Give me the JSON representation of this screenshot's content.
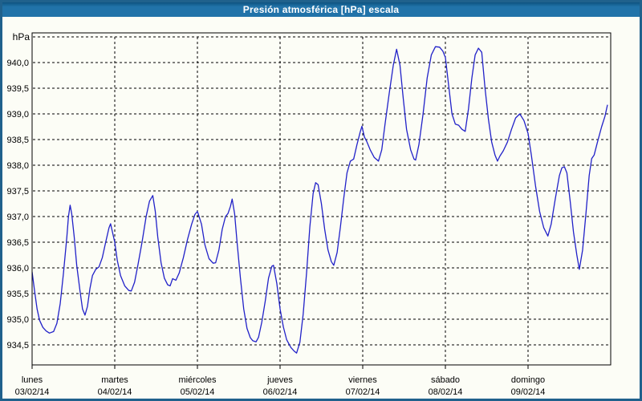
{
  "window": {
    "title": "Presión atmosférica [hPa] escala"
  },
  "colors": {
    "titlebar_top": "#0e5380",
    "titlebar_main": "#2173a9",
    "window_border": "#20618c",
    "background": "#fcfdf6",
    "grid": "#000000",
    "line": "#2121c8",
    "title_text": "#ffffff",
    "axis_text": "#000000"
  },
  "chart_data": {
    "type": "line",
    "title": "Presión atmosférica [hPa] escala",
    "y_unit_label": "hPa",
    "ylabel": "hPa",
    "xlabel": "",
    "grid": true,
    "legend": false,
    "ylim": [
      934.1,
      940.5
    ],
    "y_grid_step": 0.5,
    "y_tick_values": [
      940.0,
      939.5,
      939.0,
      938.5,
      938.0,
      937.5,
      937.0,
      936.5,
      936.0,
      935.5,
      935.0,
      934.5
    ],
    "y_tick_labels": [
      "940,0",
      "939,5",
      "939,0",
      "938,5",
      "938,0",
      "937,5",
      "937,0",
      "936,5",
      "936,0",
      "935,5",
      "935,0",
      "934,5"
    ],
    "x_days": [
      {
        "name": "lunes",
        "date": "03/02/14"
      },
      {
        "name": "martes",
        "date": "04/02/14"
      },
      {
        "name": "miércoles",
        "date": "05/02/14"
      },
      {
        "name": "jueves",
        "date": "06/02/14"
      },
      {
        "name": "viernes",
        "date": "07/02/14"
      },
      {
        "name": "sábado",
        "date": "08/02/14"
      },
      {
        "name": "domingo",
        "date": "09/02/14"
      }
    ],
    "series": [
      {
        "name": "Presión atmosférica",
        "color": "#2121c8",
        "x_unit": "days_from_2014-02-03",
        "points": [
          [
            0.0,
            935.92
          ],
          [
            0.03,
            935.55
          ],
          [
            0.06,
            935.2
          ],
          [
            0.09,
            934.98
          ],
          [
            0.13,
            934.84
          ],
          [
            0.17,
            934.77
          ],
          [
            0.21,
            934.73
          ],
          [
            0.26,
            934.76
          ],
          [
            0.3,
            934.92
          ],
          [
            0.34,
            935.3
          ],
          [
            0.38,
            935.9
          ],
          [
            0.42,
            936.6
          ],
          [
            0.44,
            937.0
          ],
          [
            0.46,
            937.22
          ],
          [
            0.48,
            937.05
          ],
          [
            0.51,
            936.6
          ],
          [
            0.54,
            936.05
          ],
          [
            0.58,
            935.55
          ],
          [
            0.61,
            935.2
          ],
          [
            0.64,
            935.08
          ],
          [
            0.67,
            935.25
          ],
          [
            0.7,
            935.6
          ],
          [
            0.73,
            935.85
          ],
          [
            0.77,
            935.97
          ],
          [
            0.81,
            936.02
          ],
          [
            0.85,
            936.2
          ],
          [
            0.89,
            936.5
          ],
          [
            0.93,
            936.78
          ],
          [
            0.95,
            936.86
          ],
          [
            1.0,
            936.5
          ],
          [
            1.03,
            936.15
          ],
          [
            1.07,
            935.85
          ],
          [
            1.12,
            935.65
          ],
          [
            1.17,
            935.56
          ],
          [
            1.2,
            935.55
          ],
          [
            1.24,
            935.72
          ],
          [
            1.28,
            936.05
          ],
          [
            1.33,
            936.5
          ],
          [
            1.38,
            937.0
          ],
          [
            1.42,
            937.3
          ],
          [
            1.46,
            937.41
          ],
          [
            1.49,
            937.1
          ],
          [
            1.52,
            936.6
          ],
          [
            1.56,
            936.1
          ],
          [
            1.6,
            935.8
          ],
          [
            1.64,
            935.67
          ],
          [
            1.67,
            935.65
          ],
          [
            1.7,
            935.79
          ],
          [
            1.74,
            935.76
          ],
          [
            1.78,
            935.9
          ],
          [
            1.83,
            936.2
          ],
          [
            1.88,
            936.55
          ],
          [
            1.93,
            936.85
          ],
          [
            1.97,
            937.04
          ],
          [
            2.0,
            937.1
          ],
          [
            2.05,
            936.85
          ],
          [
            2.09,
            936.45
          ],
          [
            2.14,
            936.18
          ],
          [
            2.19,
            936.09
          ],
          [
            2.22,
            936.1
          ],
          [
            2.26,
            936.35
          ],
          [
            2.3,
            936.75
          ],
          [
            2.34,
            937.0
          ],
          [
            2.37,
            937.06
          ],
          [
            2.4,
            937.2
          ],
          [
            2.42,
            937.34
          ],
          [
            2.45,
            937.05
          ],
          [
            2.48,
            936.5
          ],
          [
            2.52,
            935.8
          ],
          [
            2.56,
            935.2
          ],
          [
            2.6,
            934.82
          ],
          [
            2.64,
            934.64
          ],
          [
            2.67,
            934.58
          ],
          [
            2.71,
            934.56
          ],
          [
            2.74,
            934.65
          ],
          [
            2.78,
            934.95
          ],
          [
            2.82,
            935.35
          ],
          [
            2.86,
            935.8
          ],
          [
            2.9,
            936.03
          ],
          [
            2.92,
            936.05
          ],
          [
            2.96,
            935.7
          ],
          [
            3.0,
            935.2
          ],
          [
            3.04,
            934.85
          ],
          [
            3.08,
            934.6
          ],
          [
            3.13,
            934.45
          ],
          [
            3.17,
            934.38
          ],
          [
            3.2,
            934.34
          ],
          [
            3.24,
            934.55
          ],
          [
            3.28,
            935.1
          ],
          [
            3.32,
            935.9
          ],
          [
            3.36,
            936.8
          ],
          [
            3.4,
            937.45
          ],
          [
            3.43,
            937.66
          ],
          [
            3.46,
            937.62
          ],
          [
            3.5,
            937.25
          ],
          [
            3.54,
            936.75
          ],
          [
            3.58,
            936.35
          ],
          [
            3.62,
            936.12
          ],
          [
            3.65,
            936.05
          ],
          [
            3.69,
            936.3
          ],
          [
            3.73,
            936.8
          ],
          [
            3.77,
            937.35
          ],
          [
            3.81,
            937.85
          ],
          [
            3.85,
            938.08
          ],
          [
            3.89,
            938.12
          ],
          [
            3.93,
            938.4
          ],
          [
            3.97,
            938.65
          ],
          [
            3.99,
            938.76
          ],
          [
            4.02,
            938.55
          ],
          [
            4.05,
            938.46
          ],
          [
            4.09,
            938.3
          ],
          [
            4.14,
            938.15
          ],
          [
            4.19,
            938.08
          ],
          [
            4.23,
            938.3
          ],
          [
            4.27,
            938.8
          ],
          [
            4.32,
            939.4
          ],
          [
            4.37,
            939.95
          ],
          [
            4.41,
            940.26
          ],
          [
            4.45,
            939.95
          ],
          [
            4.49,
            939.3
          ],
          [
            4.53,
            938.7
          ],
          [
            4.58,
            938.3
          ],
          [
            4.62,
            938.12
          ],
          [
            4.64,
            938.1
          ],
          [
            4.68,
            938.4
          ],
          [
            4.73,
            939.0
          ],
          [
            4.78,
            939.7
          ],
          [
            4.83,
            940.15
          ],
          [
            4.88,
            940.31
          ],
          [
            4.93,
            940.3
          ],
          [
            4.97,
            940.22
          ],
          [
            5.0,
            940.1
          ],
          [
            5.04,
            939.55
          ],
          [
            5.08,
            939.0
          ],
          [
            5.12,
            938.8
          ],
          [
            5.16,
            938.78
          ],
          [
            5.2,
            938.7
          ],
          [
            5.24,
            938.66
          ],
          [
            5.28,
            939.1
          ],
          [
            5.32,
            939.7
          ],
          [
            5.36,
            940.15
          ],
          [
            5.4,
            940.28
          ],
          [
            5.44,
            940.2
          ],
          [
            5.48,
            939.5
          ],
          [
            5.52,
            938.9
          ],
          [
            5.56,
            938.45
          ],
          [
            5.6,
            938.2
          ],
          [
            5.63,
            938.08
          ],
          [
            5.66,
            938.18
          ],
          [
            5.7,
            938.28
          ],
          [
            5.75,
            938.45
          ],
          [
            5.8,
            938.7
          ],
          [
            5.85,
            938.92
          ],
          [
            5.9,
            939.0
          ],
          [
            5.95,
            938.87
          ],
          [
            6.0,
            938.62
          ],
          [
            6.04,
            938.2
          ],
          [
            6.09,
            937.6
          ],
          [
            6.14,
            937.1
          ],
          [
            6.19,
            936.78
          ],
          [
            6.24,
            936.62
          ],
          [
            6.28,
            936.85
          ],
          [
            6.33,
            937.35
          ],
          [
            6.38,
            937.8
          ],
          [
            6.41,
            937.95
          ],
          [
            6.44,
            937.97
          ],
          [
            6.47,
            937.85
          ],
          [
            6.51,
            937.3
          ],
          [
            6.55,
            936.7
          ],
          [
            6.59,
            936.25
          ],
          [
            6.62,
            935.97
          ],
          [
            6.66,
            936.35
          ],
          [
            6.7,
            937.05
          ],
          [
            6.74,
            937.8
          ],
          [
            6.77,
            938.13
          ],
          [
            6.8,
            938.2
          ],
          [
            6.84,
            938.45
          ],
          [
            6.89,
            938.75
          ],
          [
            6.93,
            938.95
          ],
          [
            6.96,
            939.17
          ]
        ]
      }
    ]
  }
}
